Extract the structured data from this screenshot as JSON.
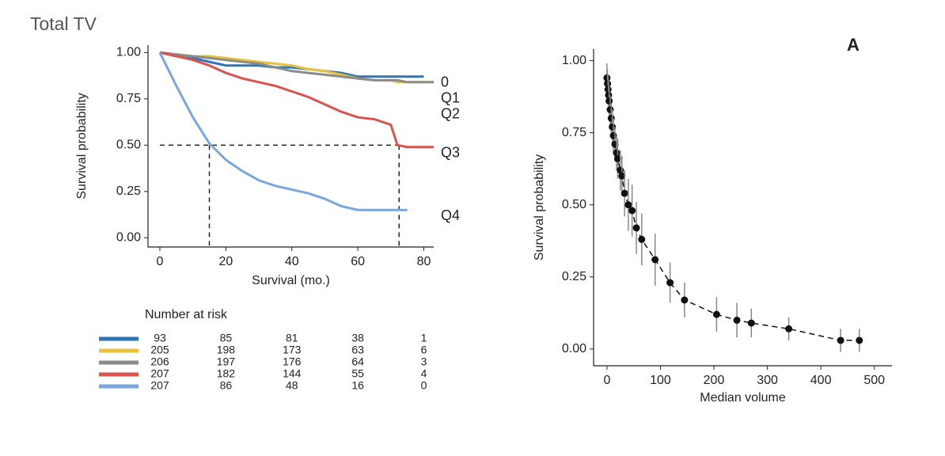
{
  "title": "Total TV",
  "chart_data": [
    {
      "type": "km",
      "xlabel": "Survival (mo.)",
      "ylabel": "Survival probability",
      "x": [
        0,
        5,
        10,
        15,
        20,
        25,
        30,
        35,
        40,
        45,
        50,
        55,
        60,
        65,
        70,
        72,
        75,
        80,
        83
      ],
      "series": [
        {
          "name": "0",
          "color": "#2e75b6",
          "values": [
            1,
            0.99,
            0.97,
            0.95,
            0.93,
            0.93,
            0.93,
            0.92,
            0.92,
            0.91,
            0.9,
            0.89,
            0.87,
            0.87,
            0.87,
            0.87,
            0.87,
            0.87,
            null
          ]
        },
        {
          "name": "Q1",
          "color": "#e8c33a",
          "values": [
            1,
            0.99,
            0.98,
            0.98,
            0.97,
            0.96,
            0.95,
            0.94,
            0.93,
            0.91,
            0.9,
            0.88,
            0.86,
            0.85,
            0.85,
            0.84,
            0.84,
            0.84,
            0.84
          ]
        },
        {
          "name": "Q2",
          "color": "#8c8c8c",
          "values": [
            1,
            0.99,
            0.98,
            0.97,
            0.96,
            0.95,
            0.94,
            0.92,
            0.9,
            0.89,
            0.88,
            0.87,
            0.86,
            0.85,
            0.85,
            0.85,
            0.84,
            0.84,
            0.84
          ]
        },
        {
          "name": "Q3",
          "color": "#d9534f",
          "values": [
            1,
            0.98,
            0.96,
            0.93,
            0.89,
            0.86,
            0.84,
            0.82,
            0.79,
            0.76,
            0.72,
            0.68,
            0.65,
            0.64,
            0.61,
            0.5,
            0.49,
            0.49,
            0.49
          ]
        },
        {
          "name": "Q4",
          "color": "#7aa6dc",
          "values": [
            1,
            0.82,
            0.65,
            0.51,
            0.42,
            0.36,
            0.31,
            0.28,
            0.26,
            0.24,
            0.21,
            0.17,
            0.15,
            0.15,
            0.15,
            0.15,
            0.15,
            null,
            null
          ]
        }
      ],
      "median_lines": {
        "y": 0.5,
        "x": [
          15,
          72.5
        ]
      },
      "xlim": [
        -3.6,
        83
      ],
      "xticks": [
        0,
        20,
        40,
        60,
        80
      ],
      "ylim": [
        -0.05,
        1.04
      ],
      "yticks": [
        {
          "value": 0,
          "label": "0.00"
        },
        {
          "value": 0.25,
          "label": "0.25"
        },
        {
          "value": 0.5,
          "label": "0.50"
        },
        {
          "value": 0.75,
          "label": "0.75"
        },
        {
          "value": 1,
          "label": "1.00"
        }
      ],
      "risk_table": {
        "title": "Number at risk",
        "rows": [
          [
            93,
            85,
            81,
            38,
            1
          ],
          [
            205,
            198,
            173,
            63,
            6
          ],
          [
            206,
            197,
            176,
            64,
            3
          ],
          [
            207,
            182,
            144,
            55,
            4
          ],
          [
            207,
            86,
            48,
            16,
            0
          ]
        ]
      }
    },
    {
      "type": "scatter",
      "panel_label": "A",
      "xlabel": "Median volume",
      "ylabel": "Survival probability",
      "x": [
        0,
        1,
        2,
        3,
        4,
        6,
        8,
        10,
        12,
        15,
        18,
        20,
        25,
        28,
        33,
        40,
        47,
        55,
        65,
        90,
        118,
        145,
        205,
        243,
        270,
        340,
        437,
        472
      ],
      "values": [
        0.94,
        0.92,
        0.9,
        0.88,
        0.86,
        0.83,
        0.8,
        0.77,
        0.74,
        0.71,
        0.68,
        0.66,
        0.62,
        0.6,
        0.54,
        0.5,
        0.48,
        0.42,
        0.38,
        0.31,
        0.23,
        0.17,
        0.12,
        0.1,
        0.09,
        0.07,
        0.03,
        0.03
      ],
      "error": [
        0.05,
        0.05,
        0.05,
        0.05,
        0.05,
        0.05,
        0.05,
        0.06,
        0.06,
        0.06,
        0.06,
        0.07,
        0.07,
        0.07,
        0.08,
        0.09,
        0.09,
        0.09,
        0.09,
        0.09,
        0.07,
        0.06,
        0.06,
        0.06,
        0.05,
        0.04,
        0.04,
        0.04
      ],
      "color": "#111111",
      "xlim": [
        -25,
        533
      ],
      "xticks": [
        0,
        100,
        200,
        300,
        400,
        500
      ],
      "ylim": [
        -0.058,
        1.04
      ],
      "yticks": [
        {
          "value": 0,
          "label": "0.00"
        },
        {
          "value": 0.25,
          "label": "0.25"
        },
        {
          "value": 0.5,
          "label": "0.50"
        },
        {
          "value": 0.75,
          "label": "0.75"
        },
        {
          "value": 1,
          "label": "1.00"
        }
      ]
    }
  ]
}
